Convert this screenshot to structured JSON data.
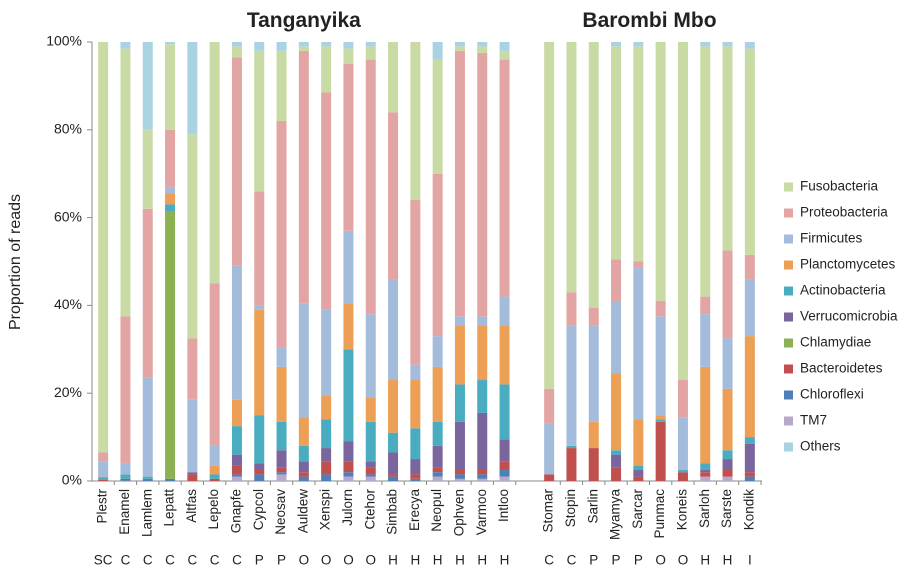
{
  "chart_data": {
    "type": "bar",
    "stacked": true,
    "ylabel": "Proportion of reads",
    "ylim": [
      0,
      100
    ],
    "yticks": [
      {
        "value": 0,
        "label": "0%"
      },
      {
        "value": 20,
        "label": "20%"
      },
      {
        "value": 40,
        "label": "40%"
      },
      {
        "value": 60,
        "label": "60%"
      },
      {
        "value": 80,
        "label": "80%"
      },
      {
        "value": 100,
        "label": "100%"
      }
    ],
    "groups": [
      {
        "title": "Tanganyika",
        "categories": [
          "Plestr",
          "Enamel",
          "Lamlem",
          "Lepatt",
          "Altfas",
          "Lepelo",
          "Gnapfe",
          "Cypcol",
          "Neosav",
          "Auldew",
          "Xenspi",
          "Julorn",
          "Ctehor",
          "Simbab",
          "Erecya",
          "Neopul",
          "Ophven",
          "Varmoo",
          "Intloo"
        ],
        "diets": [
          "SC",
          "C",
          "C",
          "C",
          "C",
          "C",
          "C",
          "P",
          "P",
          "O",
          "O",
          "O",
          "O",
          "H",
          "H",
          "H",
          "H",
          "H",
          "H"
        ]
      },
      {
        "title": "Barombi Mbo",
        "categories": [
          "Stomar",
          "Stopin",
          "Sarlin",
          "Myamya",
          "Sarcar",
          "Punmac",
          "Koneis",
          "Sarloh",
          "Sarste",
          "Kondik"
        ],
        "diets": [
          "C",
          "C",
          "P",
          "P",
          "P",
          "O",
          "O",
          "H",
          "H",
          "I"
        ]
      }
    ],
    "series": [
      {
        "name": "Fusobacteria",
        "color": "#c9dba5",
        "values": [
          [
            93.5,
            61,
            18,
            19.5,
            46.5,
            55,
            2.5,
            32,
            16,
            1,
            10.5,
            3.5,
            3,
            16,
            36,
            26,
            1,
            1.5,
            2
          ],
          [
            79,
            57,
            60.5,
            48.5,
            49,
            59,
            77,
            57,
            46.5,
            47
          ]
        ]
      },
      {
        "name": "Proteobacteria",
        "color": "#e3a5a4",
        "values": [
          [
            2,
            33.5,
            38.5,
            13,
            14,
            37,
            47.5,
            26,
            51.5,
            57.5,
            49.5,
            38,
            58,
            38,
            37.5,
            37,
            60.5,
            60,
            54
          ],
          [
            8,
            7.5,
            4,
            9.5,
            1.5,
            3.5,
            8.5,
            4,
            20,
            5.5
          ]
        ]
      },
      {
        "name": "Firmicutes",
        "color": "#a4bcdc",
        "values": [
          [
            3.5,
            2.5,
            22.5,
            1.5,
            16.5,
            4.5,
            30.5,
            1,
            4.5,
            26,
            19.5,
            16.5,
            19,
            23,
            3.5,
            7,
            2,
            2,
            6.5
          ],
          [
            11.5,
            27.5,
            22,
            16.5,
            34.5,
            22.5,
            12,
            12,
            11.5,
            13
          ]
        ]
      },
      {
        "name": "Planctomycetes",
        "color": "#ec9f55",
        "values": [
          [
            0.2,
            0,
            0,
            2.5,
            0,
            2,
            6,
            24,
            12.5,
            6.5,
            5.5,
            10.5,
            5.5,
            12,
            11,
            12.5,
            13.5,
            12.5,
            13.5
          ],
          [
            0,
            0,
            6,
            17.5,
            10.5,
            1,
            0,
            22,
            14,
            23
          ]
        ]
      },
      {
        "name": "Actinobacteria",
        "color": "#4aacc0",
        "values": [
          [
            0.5,
            1,
            0.5,
            1.5,
            0,
            1,
            6.5,
            11,
            6.5,
            3.5,
            6.5,
            21,
            9,
            4.5,
            7,
            5.5,
            8.5,
            7.5,
            12.5
          ],
          [
            0,
            0.5,
            0,
            1,
            1,
            0.5,
            0.5,
            1.5,
            2,
            1.5
          ]
        ]
      },
      {
        "name": "Verrucomicrobia",
        "color": "#7b659d",
        "values": [
          [
            0,
            0,
            0,
            0,
            0.5,
            0,
            2.5,
            1.5,
            4,
            2.5,
            3,
            4.5,
            1.5,
            5,
            3.5,
            5,
            11,
            13,
            5
          ],
          [
            0,
            0,
            0,
            3,
            1.5,
            0,
            0,
            0.5,
            2.5,
            6.5
          ]
        ]
      },
      {
        "name": "Chlamydiae",
        "color": "#8db053",
        "values": [
          [
            0,
            0,
            0,
            61,
            0,
            0,
            0,
            0,
            0,
            0,
            0,
            0,
            0,
            0,
            0,
            0,
            0,
            0,
            0
          ],
          [
            0,
            0,
            0,
            0,
            0,
            0,
            0,
            0,
            0,
            0
          ]
        ]
      },
      {
        "name": "Bacteroidetes",
        "color": "#c0504d",
        "values": [
          [
            0.3,
            0.3,
            0,
            0,
            1.5,
            0.5,
            2,
            1,
            1,
            1,
            3,
            2.5,
            1.5,
            0.5,
            1,
            1,
            1,
            1,
            2
          ],
          [
            1.5,
            7.5,
            7.5,
            3,
            1,
            13.5,
            2,
            1,
            1.5,
            1
          ]
        ]
      },
      {
        "name": "Chloroflexi",
        "color": "#4f7fb8",
        "values": [
          [
            0,
            0.2,
            0.5,
            0.5,
            0,
            0,
            0.5,
            1.5,
            0.5,
            1,
            1.5,
            1,
            0.5,
            1,
            0.5,
            1,
            1,
            1,
            1.5
          ],
          [
            0,
            0,
            0,
            0,
            0,
            0,
            0,
            0,
            0,
            1
          ]
        ]
      },
      {
        "name": "TM7",
        "color": "#b7a8cc",
        "values": [
          [
            0,
            0,
            0,
            0,
            0,
            0,
            1,
            0,
            1.5,
            0,
            0,
            1,
            1,
            0,
            0,
            1,
            0.5,
            0.5,
            1
          ],
          [
            0,
            0,
            0,
            0,
            0,
            0,
            0,
            1,
            1,
            0
          ]
        ]
      },
      {
        "name": "Others",
        "color": "#a9d3e3",
        "values": [
          [
            0,
            1.5,
            20,
            0.5,
            21,
            0,
            1,
            2,
            2,
            1,
            1,
            1.5,
            1,
            0,
            0,
            4,
            1,
            1,
            2
          ],
          [
            0,
            0,
            0,
            1,
            1,
            0,
            0,
            1,
            1,
            1.5
          ]
        ]
      }
    ]
  }
}
